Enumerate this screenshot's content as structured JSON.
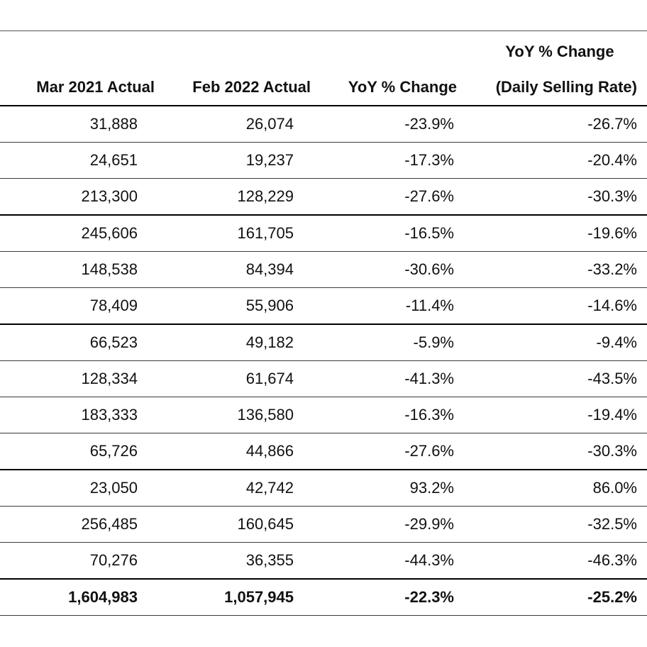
{
  "table": {
    "super_header": "YoY % Change",
    "columns": [
      "Mar 2021 Actual",
      "Feb 2022 Actual",
      "YoY % Change",
      "(Daily Selling Rate)"
    ],
    "rows": [
      [
        "31,888",
        "26,074",
        "-23.9%",
        "-26.7%"
      ],
      [
        "24,651",
        "19,237",
        "-17.3%",
        "-20.4%"
      ],
      [
        "213,300",
        "128,229",
        "-27.6%",
        "-30.3%"
      ],
      [
        "245,606",
        "161,705",
        "-16.5%",
        "-19.6%"
      ],
      [
        "148,538",
        "84,394",
        "-30.6%",
        "-33.2%"
      ],
      [
        "78,409",
        "55,906",
        "-11.4%",
        "-14.6%"
      ],
      [
        "66,523",
        "49,182",
        "-5.9%",
        "-9.4%"
      ],
      [
        "128,334",
        "61,674",
        "-41.3%",
        "-43.5%"
      ],
      [
        "183,333",
        "136,580",
        "-16.3%",
        "-19.4%"
      ],
      [
        "65,726",
        "44,866",
        "-27.6%",
        "-30.3%"
      ],
      [
        "23,050",
        "42,742",
        "93.2%",
        "86.0%"
      ],
      [
        "256,485",
        "160,645",
        "-29.9%",
        "-32.5%"
      ],
      [
        "70,276",
        "36,355",
        "-44.3%",
        "-46.3%"
      ]
    ],
    "total": [
      "1,604,983",
      "1,057,945",
      "-22.3%",
      "-25.2%"
    ]
  }
}
